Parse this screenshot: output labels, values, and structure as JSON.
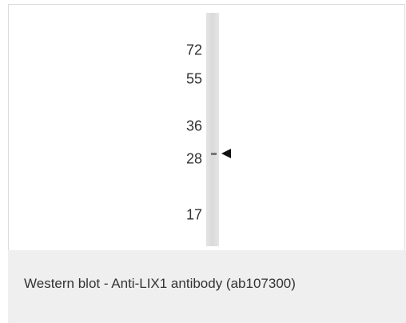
{
  "blot": {
    "markers": [
      "72",
      "55",
      "36",
      "28",
      "17"
    ]
  },
  "caption": "Western blot - Anti-LIX1 antibody (ab107300)"
}
